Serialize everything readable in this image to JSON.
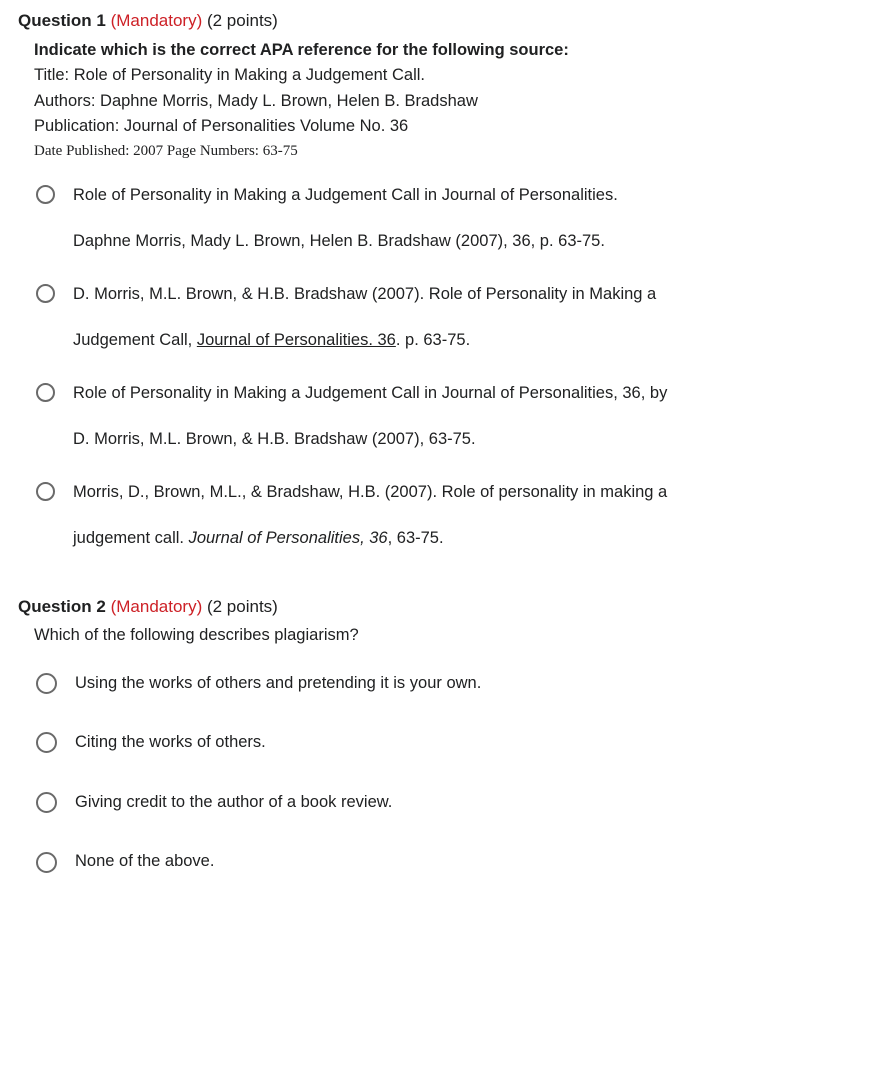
{
  "colors": {
    "text": "#202122",
    "mandatory": "#cd2026",
    "radio_border": "#6a6a6a",
    "background": "#ffffff"
  },
  "q1": {
    "label": "Question 1",
    "mandatory": "(Mandatory)",
    "points": "(2 points)",
    "prompt_bold": "Indicate which is the correct APA reference for the following source:",
    "prompt_lines": [
      "Title: Role of Personality in Making a Judgement Call.",
      "Authors: Daphne Morris, Mady L. Brown, Helen B. Bradshaw",
      "Publication: Journal of Personalities Volume No. 36"
    ],
    "prompt_small": "Date Published: 2007 Page Numbers: 63-75",
    "options": [
      {
        "p1": "Role of Personality in Making a Judgement Call in Journal of Personalities.",
        "p2": "Daphne Morris, Mady L. Brown, Helen B. Bradshaw (2007), 36, p. 63-75."
      },
      {
        "p1_a": "D. Morris, M.L. Brown, & H.B. Bradshaw (2007). Role of Personality in Making a",
        "p2_a": "Judgement Call, ",
        "p2_u": "Journal of Personalities. 36",
        "p2_b": ". p. 63-75."
      },
      {
        "p1": "Role of Personality in Making a Judgement Call in Journal of Personalities, 36, by",
        "p2": "D. Morris, M.L. Brown, & H.B. Bradshaw (2007), 63-75."
      },
      {
        "p1": "Morris, D., Brown, M.L., & Bradshaw, H.B. (2007). Role of personality in making a",
        "p2_a": "judgement call. ",
        "p2_i": "Journal of Personalities, 36",
        "p2_b": ", 63-75."
      }
    ]
  },
  "q2": {
    "label": "Question 2",
    "mandatory": "(Mandatory)",
    "points": "(2 points)",
    "prompt": "Which of the following describes plagiarism?",
    "options": [
      "Using the works of others and pretending it is your own.",
      "Citing the works of others.",
      "Giving credit to the author of a book review.",
      "None of the above."
    ]
  }
}
